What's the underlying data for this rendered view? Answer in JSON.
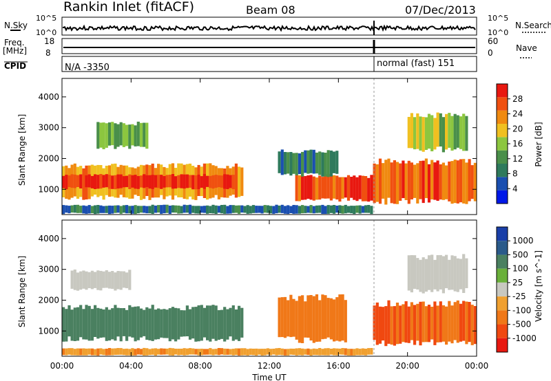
{
  "header": {
    "title": "Rankin Inlet (fitACF)",
    "beam": "Beam 08",
    "date": "07/Dec/2013"
  },
  "noise_panel": {
    "left_label": "N.Sky",
    "right_label": "N.Search",
    "left_ticks": [
      "10^5",
      "10^0"
    ],
    "right_ticks": [
      "10^5",
      "10^0"
    ]
  },
  "freq_panel": {
    "left_label": "Freq.",
    "left_unit": "[MHz]",
    "right_label": "Nave",
    "left_ticks": [
      "18",
      "8"
    ],
    "right_ticks": [
      "60",
      "0"
    ]
  },
  "cpid_panel": {
    "label": "CPID",
    "segments": [
      {
        "start_ut": "00:00",
        "text": "N/A -3350"
      },
      {
        "start_ut": "18:05",
        "text": "normal (fast) 151"
      }
    ]
  },
  "colors": {
    "power": [
      "#0018e8",
      "#1a4fb0",
      "#2e7a5c",
      "#4a8f4a",
      "#8cc63f",
      "#f0c020",
      "#f08a10",
      "#f05010",
      "#e81810"
    ],
    "velocity": [
      "#1a3fa8",
      "#2a5a8a",
      "#4a8060",
      "#6ab03a",
      "#c8c8c0",
      "#f0a030",
      "#f07818",
      "#f04810",
      "#e81810"
    ]
  },
  "chart_data": [
    {
      "type": "heatmap",
      "title": "Rankin Inlet (fitACF)",
      "subtitle": "Beam 08",
      "xlabel": "Time UT",
      "ylabel": "Slant Range [km]",
      "x_ticks": [
        "00:00",
        "04:00",
        "08:00",
        "12:00",
        "16:00",
        "20:00",
        "00:00"
      ],
      "x_range_hours": [
        0,
        24
      ],
      "y_ticks": [
        "1000",
        "2000",
        "3000",
        "4000"
      ],
      "y_range_km": [
        180,
        4600
      ],
      "colorbar": {
        "label": "Power [dB]",
        "ticks": [
          "4",
          "8",
          "12",
          "16",
          "20",
          "24",
          "28"
        ],
        "range": [
          0,
          32
        ]
      },
      "regions": [
        {
          "t0": 0.0,
          "t1": 10.5,
          "r0": 650,
          "r1": 1850,
          "value": 22
        },
        {
          "t0": 0.0,
          "t1": 10.0,
          "r0": 1000,
          "r1": 1500,
          "value": 30
        },
        {
          "t0": 13.5,
          "t1": 18.0,
          "r0": 600,
          "r1": 1500,
          "value": 28
        },
        {
          "t0": 18.0,
          "t1": 24.0,
          "r0": 500,
          "r1": 2000,
          "value": 26
        },
        {
          "t0": 12.5,
          "t1": 16.0,
          "r0": 1400,
          "r1": 2300,
          "value": 10
        },
        {
          "t0": 2.0,
          "t1": 5.0,
          "r0": 2300,
          "r1": 3200,
          "value": 14
        },
        {
          "t0": 20.0,
          "t1": 23.5,
          "r0": 2200,
          "r1": 3500,
          "value": 16
        },
        {
          "t0": 0.0,
          "t1": 18.0,
          "r0": 200,
          "r1": 500,
          "value": 8
        }
      ]
    },
    {
      "type": "heatmap",
      "xlabel": "Time UT",
      "ylabel": "Slant Range [km]",
      "x_ticks": [
        "00:00",
        "04:00",
        "08:00",
        "12:00",
        "16:00",
        "20:00",
        "00:00"
      ],
      "x_range_hours": [
        0,
        24
      ],
      "y_ticks": [
        "1000",
        "2000",
        "3000",
        "4000"
      ],
      "y_range_km": [
        180,
        4600
      ],
      "colorbar": {
        "label": "Velocity [m s^-1]",
        "ticks": [
          "1000",
          "500",
          "100",
          "25",
          "-25",
          "-100",
          "-500",
          "-1000"
        ],
        "range": [
          -1000,
          1000
        ]
      },
      "regions": [
        {
          "t0": 0.0,
          "t1": 10.5,
          "r0": 650,
          "r1": 1850,
          "value": 120
        },
        {
          "t0": 0.5,
          "t1": 4.0,
          "r0": 2300,
          "r1": 3000,
          "value": 0
        },
        {
          "t0": 12.5,
          "t1": 16.5,
          "r0": 600,
          "r1": 2200,
          "value": -200
        },
        {
          "t0": 18.0,
          "t1": 24.0,
          "r0": 500,
          "r1": 2000,
          "value": -300
        },
        {
          "t0": 20.0,
          "t1": 23.5,
          "r0": 2200,
          "r1": 3500,
          "value": 0
        },
        {
          "t0": 0.0,
          "t1": 18.0,
          "r0": 200,
          "r1": 450,
          "value": -50
        }
      ]
    }
  ]
}
